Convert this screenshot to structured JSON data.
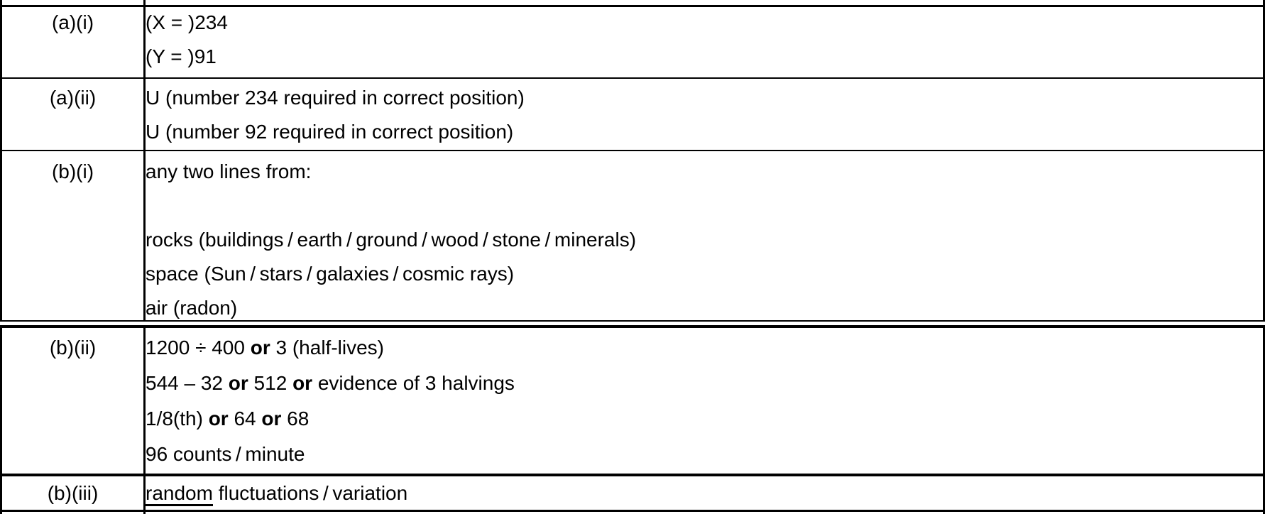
{
  "document": {
    "kind": "exam-mark-scheme-table",
    "background_color": "#ffffff",
    "text_color": "#000000",
    "border_color": "#000000"
  },
  "table": {
    "columns": [
      "question",
      "answer"
    ],
    "sections": [
      {
        "name": "section-1",
        "rows": [
          {
            "id": "a-i",
            "question": "(a)(i)",
            "answer": [
              [
                {
                  "t": "(X = )234"
                }
              ],
              [
                {
                  "t": "(Y = )91"
                }
              ]
            ]
          },
          {
            "id": "a-ii",
            "question": "(a)(ii)",
            "answer": [
              [
                {
                  "t": "U (number 234 required in correct position)"
                }
              ],
              [
                {
                  "t": "U (number 92 required in correct position)"
                }
              ]
            ]
          },
          {
            "id": "b-i",
            "question": "(b)(i)",
            "compact": true,
            "answer": [
              [
                {
                  "t": "any two lines from:"
                }
              ],
              [],
              [
                {
                  "t": "rocks (buildings / earth / ground / wood / stone / minerals)"
                }
              ],
              [
                {
                  "t": "space (Sun / stars / galaxies / cosmic rays)"
                }
              ],
              [
                {
                  "t": "air (radon)"
                }
              ]
            ]
          }
        ]
      },
      {
        "name": "section-2",
        "rows": [
          {
            "id": "b-ii",
            "question": "(b)(ii)",
            "answer": [
              [
                {
                  "t": "1200 ÷ 400 "
                },
                {
                  "t": "or",
                  "b": true
                },
                {
                  "t": " 3 (half-lives)"
                }
              ],
              [
                {
                  "t": "544 – 32 "
                },
                {
                  "t": "or",
                  "b": true
                },
                {
                  "t": " 512 "
                },
                {
                  "t": "or",
                  "b": true
                },
                {
                  "t": " evidence of 3 halvings"
                }
              ],
              [
                {
                  "t": "1/8(th) "
                },
                {
                  "t": "or",
                  "b": true
                },
                {
                  "t": " 64 "
                },
                {
                  "t": "or",
                  "b": true
                },
                {
                  "t": " 68"
                }
              ],
              [
                {
                  "t": "96 counts / minute"
                }
              ]
            ]
          },
          {
            "id": "b-iii",
            "question": "(b)(iii)",
            "answer": [
              [
                {
                  "t": "random",
                  "u": true
                },
                {
                  "t": " fluctuations / variation"
                }
              ]
            ]
          }
        ]
      }
    ]
  }
}
